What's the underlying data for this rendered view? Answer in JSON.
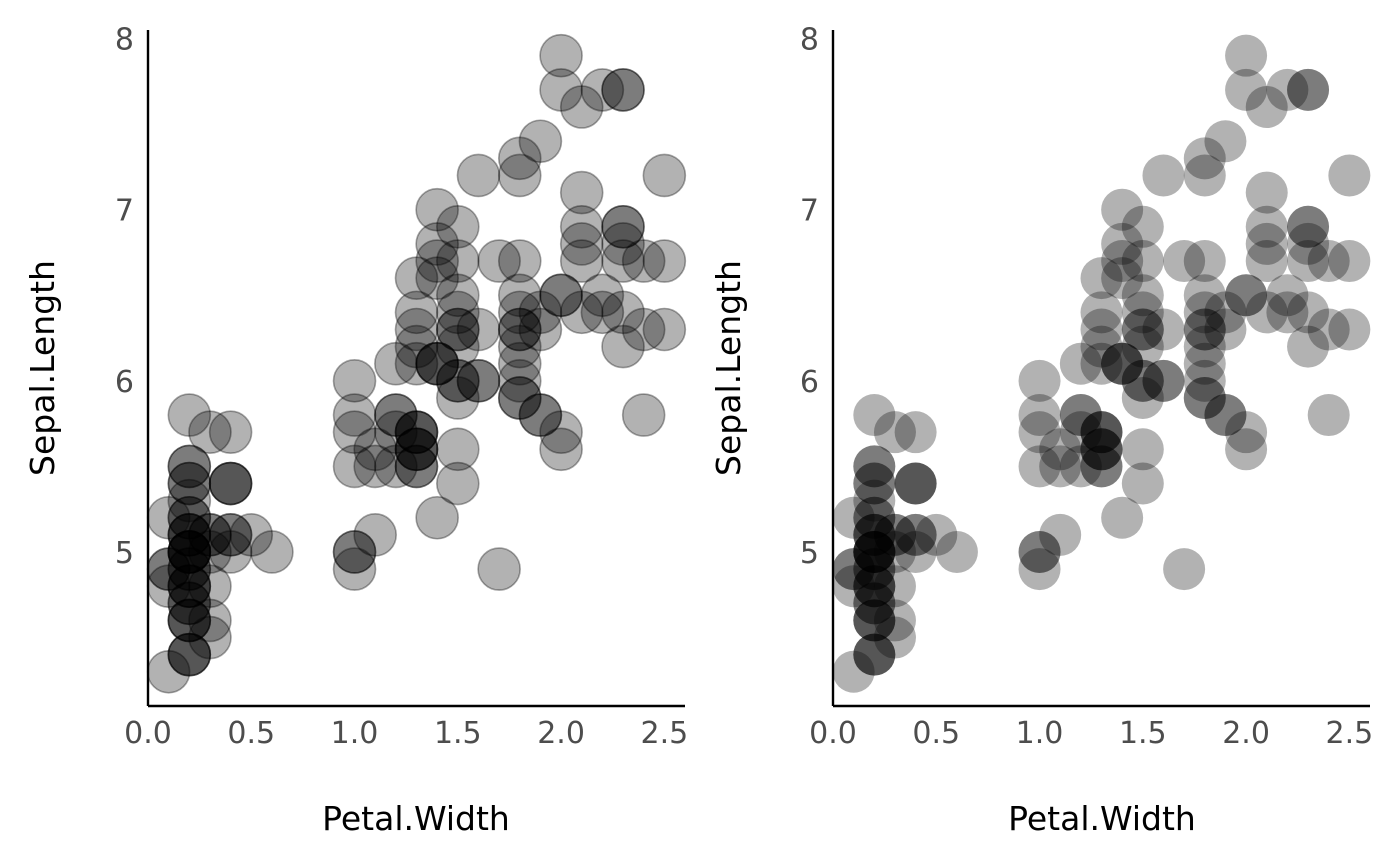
{
  "chart_data": [
    {
      "type": "scatter",
      "title": "",
      "xlabel": "Petal.Width",
      "ylabel": "Sepal.Length",
      "xlim": [
        0.0,
        2.6
      ],
      "ylim": [
        4.1,
        8.05
      ],
      "xticks": [
        "0.0",
        "0.5",
        "1.0",
        "1.5",
        "2.0",
        "2.5"
      ],
      "yticks": [
        "5",
        "6",
        "7",
        "8"
      ],
      "grid": false,
      "legend": "none",
      "point_fill": "#000000",
      "point_alpha": 0.3,
      "point_outline": true,
      "x": [
        0.2,
        0.2,
        0.2,
        0.2,
        0.2,
        0.4,
        0.3,
        0.2,
        0.2,
        0.1,
        0.2,
        0.2,
        0.1,
        0.1,
        0.2,
        0.4,
        0.4,
        0.3,
        0.3,
        0.3,
        0.2,
        0.4,
        0.2,
        0.5,
        0.2,
        0.2,
        0.4,
        0.2,
        0.2,
        0.2,
        0.2,
        0.4,
        0.1,
        0.2,
        0.2,
        0.2,
        0.2,
        0.1,
        0.2,
        0.2,
        0.3,
        0.3,
        0.2,
        0.6,
        0.4,
        0.3,
        0.2,
        0.2,
        0.2,
        0.2,
        1.4,
        1.5,
        1.5,
        1.3,
        1.5,
        1.3,
        1.6,
        1.0,
        1.3,
        1.4,
        1.0,
        1.5,
        1.0,
        1.4,
        1.3,
        1.4,
        1.5,
        1.0,
        1.5,
        1.1,
        1.8,
        1.3,
        1.5,
        1.2,
        1.3,
        1.4,
        1.4,
        1.7,
        1.5,
        1.0,
        1.1,
        1.0,
        1.2,
        1.6,
        1.5,
        1.6,
        1.5,
        1.3,
        1.3,
        1.3,
        1.2,
        1.4,
        1.2,
        1.0,
        1.3,
        1.2,
        1.3,
        1.3,
        1.1,
        1.3,
        2.5,
        1.9,
        2.1,
        1.8,
        2.2,
        2.1,
        1.7,
        1.8,
        1.8,
        2.5,
        2.0,
        1.9,
        2.1,
        2.0,
        2.4,
        2.3,
        1.8,
        2.2,
        2.3,
        1.5,
        2.3,
        2.0,
        2.0,
        1.8,
        2.1,
        1.8,
        1.8,
        1.8,
        2.1,
        1.6,
        1.9,
        2.0,
        2.2,
        1.5,
        1.4,
        2.3,
        2.4,
        1.8,
        1.8,
        2.1,
        2.4,
        2.3,
        1.9,
        2.3,
        2.5,
        2.3,
        1.9,
        2.0,
        2.3,
        1.8
      ],
      "y": [
        5.1,
        4.9,
        4.7,
        4.6,
        5.0,
        5.4,
        4.6,
        5.0,
        4.4,
        4.9,
        5.4,
        4.8,
        4.8,
        4.3,
        5.8,
        5.7,
        5.4,
        5.1,
        5.7,
        5.1,
        5.4,
        5.1,
        4.6,
        5.1,
        4.8,
        5.0,
        5.0,
        5.2,
        5.2,
        4.7,
        4.8,
        5.4,
        5.2,
        5.5,
        4.9,
        5.0,
        5.5,
        4.9,
        4.4,
        5.1,
        5.0,
        4.5,
        4.4,
        5.0,
        5.1,
        4.8,
        5.1,
        4.6,
        5.3,
        5.0,
        7.0,
        6.4,
        6.9,
        5.5,
        6.5,
        5.7,
        6.3,
        4.9,
        6.6,
        5.2,
        5.0,
        5.9,
        6.0,
        6.1,
        5.6,
        6.7,
        5.6,
        5.8,
        6.2,
        5.6,
        5.9,
        6.1,
        6.3,
        6.1,
        6.4,
        6.6,
        6.8,
        6.7,
        6.0,
        5.7,
        5.5,
        5.5,
        5.8,
        6.0,
        5.4,
        6.0,
        6.7,
        6.3,
        5.6,
        5.5,
        5.5,
        6.1,
        5.8,
        5.0,
        5.6,
        5.7,
        5.7,
        6.2,
        5.1,
        5.7,
        6.3,
        5.8,
        7.1,
        6.3,
        6.5,
        7.6,
        4.9,
        7.3,
        6.7,
        7.2,
        6.5,
        6.4,
        6.8,
        5.7,
        5.8,
        6.4,
        6.5,
        7.7,
        7.7,
        6.0,
        6.9,
        5.6,
        7.7,
        6.3,
        6.7,
        7.2,
        6.2,
        6.1,
        6.4,
        7.2,
        7.4,
        7.9,
        6.4,
        6.3,
        6.1,
        7.7,
        6.3,
        6.4,
        6.0,
        6.9,
        6.7,
        6.9,
        5.8,
        6.8,
        6.7,
        6.7,
        6.3,
        6.5,
        6.2,
        5.9
      ]
    },
    {
      "type": "scatter",
      "title": "",
      "xlabel": "Petal.Width",
      "ylabel": "Sepal.Length",
      "xlim": [
        0.0,
        2.6
      ],
      "ylim": [
        4.1,
        8.05
      ],
      "xticks": [
        "0.0",
        "0.5",
        "1.0",
        "1.5",
        "2.0",
        "2.5"
      ],
      "yticks": [
        "5",
        "6",
        "7",
        "8"
      ],
      "grid": false,
      "legend": "none",
      "point_fill": "#000000",
      "point_alpha": 0.3,
      "point_outline": false,
      "x": [
        0.2,
        0.2,
        0.2,
        0.2,
        0.2,
        0.4,
        0.3,
        0.2,
        0.2,
        0.1,
        0.2,
        0.2,
        0.1,
        0.1,
        0.2,
        0.4,
        0.4,
        0.3,
        0.3,
        0.3,
        0.2,
        0.4,
        0.2,
        0.5,
        0.2,
        0.2,
        0.4,
        0.2,
        0.2,
        0.2,
        0.2,
        0.4,
        0.1,
        0.2,
        0.2,
        0.2,
        0.2,
        0.1,
        0.2,
        0.2,
        0.3,
        0.3,
        0.2,
        0.6,
        0.4,
        0.3,
        0.2,
        0.2,
        0.2,
        0.2,
        1.4,
        1.5,
        1.5,
        1.3,
        1.5,
        1.3,
        1.6,
        1.0,
        1.3,
        1.4,
        1.0,
        1.5,
        1.0,
        1.4,
        1.3,
        1.4,
        1.5,
        1.0,
        1.5,
        1.1,
        1.8,
        1.3,
        1.5,
        1.2,
        1.3,
        1.4,
        1.4,
        1.7,
        1.5,
        1.0,
        1.1,
        1.0,
        1.2,
        1.6,
        1.5,
        1.6,
        1.5,
        1.3,
        1.3,
        1.3,
        1.2,
        1.4,
        1.2,
        1.0,
        1.3,
        1.2,
        1.3,
        1.3,
        1.1,
        1.3,
        2.5,
        1.9,
        2.1,
        1.8,
        2.2,
        2.1,
        1.7,
        1.8,
        1.8,
        2.5,
        2.0,
        1.9,
        2.1,
        2.0,
        2.4,
        2.3,
        1.8,
        2.2,
        2.3,
        1.5,
        2.3,
        2.0,
        2.0,
        1.8,
        2.1,
        1.8,
        1.8,
        1.8,
        2.1,
        1.6,
        1.9,
        2.0,
        2.2,
        1.5,
        1.4,
        2.3,
        2.4,
        1.8,
        1.8,
        2.1,
        2.4,
        2.3,
        1.9,
        2.3,
        2.5,
        2.3,
        1.9,
        2.0,
        2.3,
        1.8
      ],
      "y": [
        5.1,
        4.9,
        4.7,
        4.6,
        5.0,
        5.4,
        4.6,
        5.0,
        4.4,
        4.9,
        5.4,
        4.8,
        4.8,
        4.3,
        5.8,
        5.7,
        5.4,
        5.1,
        5.7,
        5.1,
        5.4,
        5.1,
        4.6,
        5.1,
        4.8,
        5.0,
        5.0,
        5.2,
        5.2,
        4.7,
        4.8,
        5.4,
        5.2,
        5.5,
        4.9,
        5.0,
        5.5,
        4.9,
        4.4,
        5.1,
        5.0,
        4.5,
        4.4,
        5.0,
        5.1,
        4.8,
        5.1,
        4.6,
        5.3,
        5.0,
        7.0,
        6.4,
        6.9,
        5.5,
        6.5,
        5.7,
        6.3,
        4.9,
        6.6,
        5.2,
        5.0,
        5.9,
        6.0,
        6.1,
        5.6,
        6.7,
        5.6,
        5.8,
        6.2,
        5.6,
        5.9,
        6.1,
        6.3,
        6.1,
        6.4,
        6.6,
        6.8,
        6.7,
        6.0,
        5.7,
        5.5,
        5.5,
        5.8,
        6.0,
        5.4,
        6.0,
        6.7,
        6.3,
        5.6,
        5.5,
        5.5,
        6.1,
        5.8,
        5.0,
        5.6,
        5.7,
        5.7,
        6.2,
        5.1,
        5.7,
        6.3,
        5.8,
        7.1,
        6.3,
        6.5,
        7.6,
        4.9,
        7.3,
        6.7,
        7.2,
        6.5,
        6.4,
        6.8,
        5.7,
        5.8,
        6.4,
        6.5,
        7.7,
        7.7,
        6.0,
        6.9,
        5.6,
        7.7,
        6.3,
        6.7,
        7.2,
        6.2,
        6.1,
        6.4,
        7.2,
        7.4,
        7.9,
        6.4,
        6.3,
        6.1,
        7.7,
        6.3,
        6.4,
        6.0,
        6.9,
        6.7,
        6.9,
        5.8,
        6.8,
        6.7,
        6.7,
        6.3,
        6.5,
        6.2,
        5.9
      ]
    }
  ]
}
